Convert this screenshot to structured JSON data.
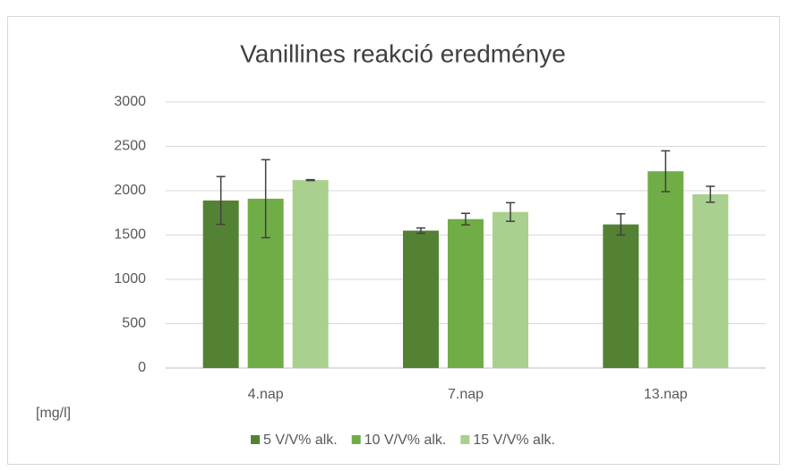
{
  "chart_data": {
    "type": "bar",
    "title": "Vanillines reakció eredménye",
    "ylabel": "[mg/l]",
    "categories": [
      "4.nap",
      "7.nap",
      "13.nap"
    ],
    "series": [
      {
        "name": "5 V/V% alk.",
        "color": "#548235",
        "values": [
          1890,
          1550,
          1620
        ],
        "errors": [
          270,
          30,
          120
        ]
      },
      {
        "name": "10 V/V% alk.",
        "color": "#70ad47",
        "values": [
          1910,
          1680,
          2220
        ],
        "errors": [
          440,
          65,
          230
        ]
      },
      {
        "name": "15 V/V% alk.",
        "color": "#a9d08e",
        "values": [
          2120,
          1760,
          1960
        ],
        "errors": [
          5,
          105,
          90
        ]
      }
    ],
    "ylim": [
      0,
      3000
    ],
    "yticks": [
      0,
      500,
      1000,
      1500,
      2000,
      2500,
      3000
    ],
    "grid": true,
    "legend": "bottom"
  }
}
